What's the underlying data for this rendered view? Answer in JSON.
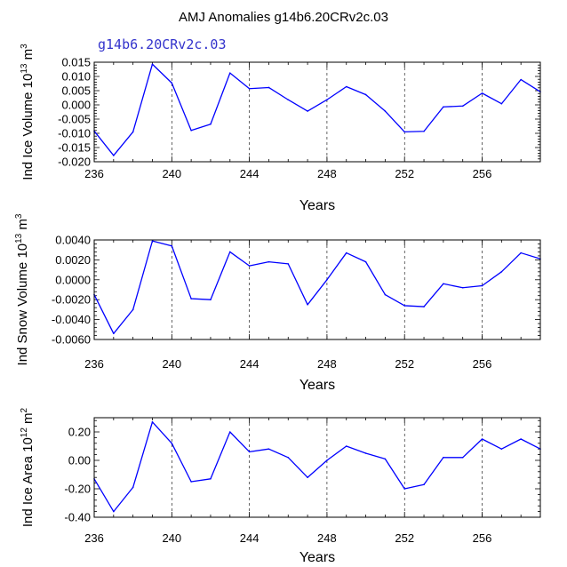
{
  "title": "AMJ Anomalies g14b6.20CRv2c.03",
  "run_label": "g14b6.20CRv2c.03",
  "colors": {
    "series": "#0000ff",
    "axes": "#000000",
    "run_label": "#3333cc"
  },
  "chart_data": [
    {
      "type": "line",
      "name": "ice-volume",
      "xlabel": "Years",
      "ylabel_main": "Ind Ice Volume 10",
      "ylabel_sup": "13",
      "ylabel_unit": " m",
      "ylabel_unit_sup": "3",
      "xlim": [
        236,
        259
      ],
      "ylim": [
        -0.02,
        0.015
      ],
      "xticks": [
        236,
        240,
        244,
        248,
        252,
        256
      ],
      "yticks": [
        0.015,
        0.01,
        0.005,
        0.0,
        -0.005,
        -0.01,
        -0.015,
        -0.02
      ],
      "ytick_labels": [
        "0.015",
        "0.010",
        "0.005",
        "0.000",
        "-0.005",
        "-0.010",
        "-0.015",
        "-0.020"
      ],
      "dashed_grid_x": [
        240,
        244,
        248,
        252,
        256
      ],
      "x": [
        236,
        237,
        238,
        239,
        240,
        241,
        242,
        243,
        244,
        245,
        246,
        247,
        248,
        249,
        250,
        251,
        252,
        253,
        254,
        255,
        256,
        257,
        258,
        259
      ],
      "values": [
        -0.0092,
        -0.0178,
        -0.0095,
        0.0143,
        0.0077,
        -0.009,
        -0.0068,
        0.0112,
        0.0057,
        0.0061,
        0.0018,
        -0.0022,
        0.0018,
        0.0064,
        0.0036,
        -0.0022,
        -0.0095,
        -0.0093,
        -0.0007,
        -0.0004,
        0.0041,
        0.0004,
        0.0089,
        0.0046
      ]
    },
    {
      "type": "line",
      "name": "snow-volume",
      "xlabel": "Years",
      "ylabel_main": "Ind Snow Volume 10",
      "ylabel_sup": "13",
      "ylabel_unit": " m",
      "ylabel_unit_sup": "3",
      "xlim": [
        236,
        259
      ],
      "ylim": [
        -0.006,
        0.004
      ],
      "xticks": [
        236,
        240,
        244,
        248,
        252,
        256
      ],
      "yticks": [
        0.004,
        0.002,
        0.0,
        -0.002,
        -0.004,
        -0.006
      ],
      "ytick_labels": [
        "0.0040",
        "0.0020",
        "0.0000",
        "-0.0020",
        "-0.0040",
        "-0.0060"
      ],
      "dashed_grid_x": [
        240,
        244,
        248,
        252,
        256
      ],
      "x": [
        236,
        237,
        238,
        239,
        240,
        241,
        242,
        243,
        244,
        245,
        246,
        247,
        248,
        249,
        250,
        251,
        252,
        253,
        254,
        255,
        256,
        257,
        258,
        259
      ],
      "values": [
        -0.0015,
        -0.0054,
        -0.003,
        0.0039,
        0.0034,
        -0.0019,
        -0.002,
        0.0028,
        0.0014,
        0.0018,
        0.0016,
        -0.0025,
        0.0,
        0.0027,
        0.0018,
        -0.0015,
        -0.0026,
        -0.0027,
        -0.0004,
        -0.0008,
        -0.0006,
        0.0008,
        0.0027,
        0.0021
      ]
    },
    {
      "type": "line",
      "name": "ice-area",
      "xlabel": "Years",
      "ylabel_main": "Ind Ice Area 10",
      "ylabel_sup": "12",
      "ylabel_unit": " m",
      "ylabel_unit_sup": "2",
      "xlim": [
        236,
        259
      ],
      "ylim": [
        -0.4,
        0.3
      ],
      "xticks": [
        236,
        240,
        244,
        248,
        252,
        256
      ],
      "yticks": [
        0.2,
        0.0,
        -0.2,
        -0.4
      ],
      "ytick_labels": [
        "0.20",
        "0.00",
        "-0.20",
        "-0.40"
      ],
      "dashed_grid_x": [
        240,
        244,
        248,
        252,
        256
      ],
      "x": [
        236,
        237,
        238,
        239,
        240,
        241,
        242,
        243,
        244,
        245,
        246,
        247,
        248,
        249,
        250,
        251,
        252,
        253,
        254,
        255,
        256,
        257,
        258,
        259
      ],
      "values": [
        -0.13,
        -0.36,
        -0.19,
        0.27,
        0.12,
        -0.15,
        -0.13,
        0.2,
        0.06,
        0.08,
        0.02,
        -0.12,
        0.0,
        0.1,
        0.05,
        0.01,
        -0.2,
        -0.17,
        0.02,
        0.02,
        0.15,
        0.08,
        0.15,
        0.08
      ]
    }
  ]
}
